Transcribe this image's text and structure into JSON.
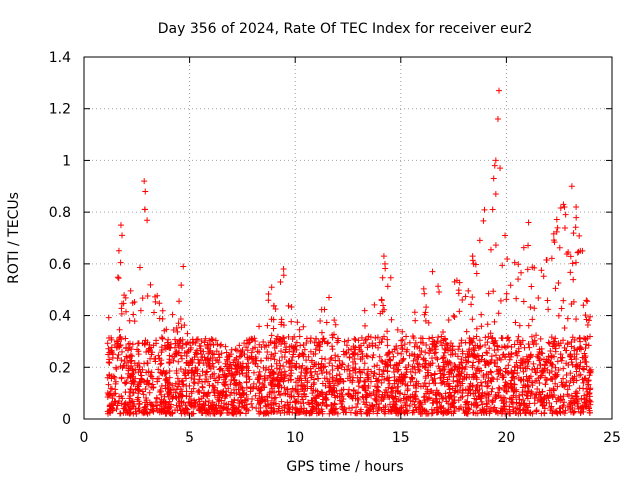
{
  "chart_data": {
    "type": "scatter",
    "title": "Day 356 of 2024, Rate Of TEC Index for receiver eur2",
    "xlabel": "GPS time / hours",
    "ylabel": "ROTI / TECUs",
    "xlim": [
      0,
      25
    ],
    "ylim": [
      0,
      1.4
    ],
    "x_ticks": [
      "0",
      "5",
      "10",
      "15",
      "20",
      "25"
    ],
    "y_ticks": [
      "0",
      "0.2",
      "0.4",
      "0.6",
      "0.8",
      "1",
      "1.2",
      "1.4"
    ],
    "grid": true,
    "marker": "+",
    "series": [
      {
        "name": "eur2",
        "color": "#ff0000",
        "x_range": [
          1.1,
          24.0
        ],
        "envelope": [
          {
            "x": 1.2,
            "y": 0.28
          },
          {
            "x": 1.5,
            "y": 0.48
          },
          {
            "x": 1.7,
            "y": 0.75
          },
          {
            "x": 2.0,
            "y": 0.55
          },
          {
            "x": 2.3,
            "y": 0.45
          },
          {
            "x": 2.6,
            "y": 0.5
          },
          {
            "x": 2.9,
            "y": 0.92
          },
          {
            "x": 3.2,
            "y": 0.6
          },
          {
            "x": 3.6,
            "y": 0.42
          },
          {
            "x": 4.0,
            "y": 0.38
          },
          {
            "x": 4.4,
            "y": 0.45
          },
          {
            "x": 4.7,
            "y": 0.6
          },
          {
            "x": 5.0,
            "y": 0.35
          },
          {
            "x": 6.0,
            "y": 0.3
          },
          {
            "x": 7.0,
            "y": 0.25
          },
          {
            "x": 8.0,
            "y": 0.3
          },
          {
            "x": 8.8,
            "y": 0.48
          },
          {
            "x": 9.5,
            "y": 0.59
          },
          {
            "x": 10.0,
            "y": 0.4
          },
          {
            "x": 11.0,
            "y": 0.35
          },
          {
            "x": 11.6,
            "y": 0.48
          },
          {
            "x": 12.3,
            "y": 0.35
          },
          {
            "x": 13.0,
            "y": 0.38
          },
          {
            "x": 13.6,
            "y": 0.42
          },
          {
            "x": 14.0,
            "y": 0.5
          },
          {
            "x": 14.3,
            "y": 0.64
          },
          {
            "x": 15.0,
            "y": 0.33
          },
          {
            "x": 15.7,
            "y": 0.42
          },
          {
            "x": 16.4,
            "y": 0.58
          },
          {
            "x": 17.0,
            "y": 0.45
          },
          {
            "x": 17.8,
            "y": 0.55
          },
          {
            "x": 18.5,
            "y": 0.65
          },
          {
            "x": 19.3,
            "y": 1.0
          },
          {
            "x": 19.6,
            "y": 1.27
          },
          {
            "x": 20.0,
            "y": 0.65
          },
          {
            "x": 20.5,
            "y": 0.65
          },
          {
            "x": 21.0,
            "y": 0.76
          },
          {
            "x": 21.5,
            "y": 0.55
          },
          {
            "x": 22.0,
            "y": 0.62
          },
          {
            "x": 22.6,
            "y": 0.83
          },
          {
            "x": 23.1,
            "y": 0.9
          },
          {
            "x": 23.5,
            "y": 0.66
          },
          {
            "x": 24.0,
            "y": 0.4
          }
        ],
        "outliers": [
          {
            "x": 2.85,
            "y": 0.92
          },
          {
            "x": 2.9,
            "y": 0.88
          },
          {
            "x": 2.88,
            "y": 0.81
          },
          {
            "x": 1.75,
            "y": 0.75
          },
          {
            "x": 1.8,
            "y": 0.71
          },
          {
            "x": 4.7,
            "y": 0.59
          },
          {
            "x": 9.45,
            "y": 0.58
          },
          {
            "x": 11.6,
            "y": 0.47
          },
          {
            "x": 14.2,
            "y": 0.63
          },
          {
            "x": 14.25,
            "y": 0.6
          },
          {
            "x": 16.5,
            "y": 0.57
          },
          {
            "x": 19.5,
            "y": 1.0
          },
          {
            "x": 19.45,
            "y": 0.98
          },
          {
            "x": 19.7,
            "y": 0.97
          },
          {
            "x": 19.6,
            "y": 1.16
          },
          {
            "x": 19.65,
            "y": 1.27
          },
          {
            "x": 19.4,
            "y": 0.93
          },
          {
            "x": 19.5,
            "y": 0.87
          },
          {
            "x": 19.35,
            "y": 0.81
          },
          {
            "x": 21.05,
            "y": 0.76
          },
          {
            "x": 22.7,
            "y": 0.83
          },
          {
            "x": 22.75,
            "y": 0.82
          },
          {
            "x": 23.1,
            "y": 0.9
          },
          {
            "x": 23.3,
            "y": 0.82
          },
          {
            "x": 23.5,
            "y": 0.65
          },
          {
            "x": 23.6,
            "y": 0.65
          },
          {
            "x": 18.4,
            "y": 0.63
          },
          {
            "x": 18.45,
            "y": 0.6
          }
        ]
      }
    ]
  }
}
